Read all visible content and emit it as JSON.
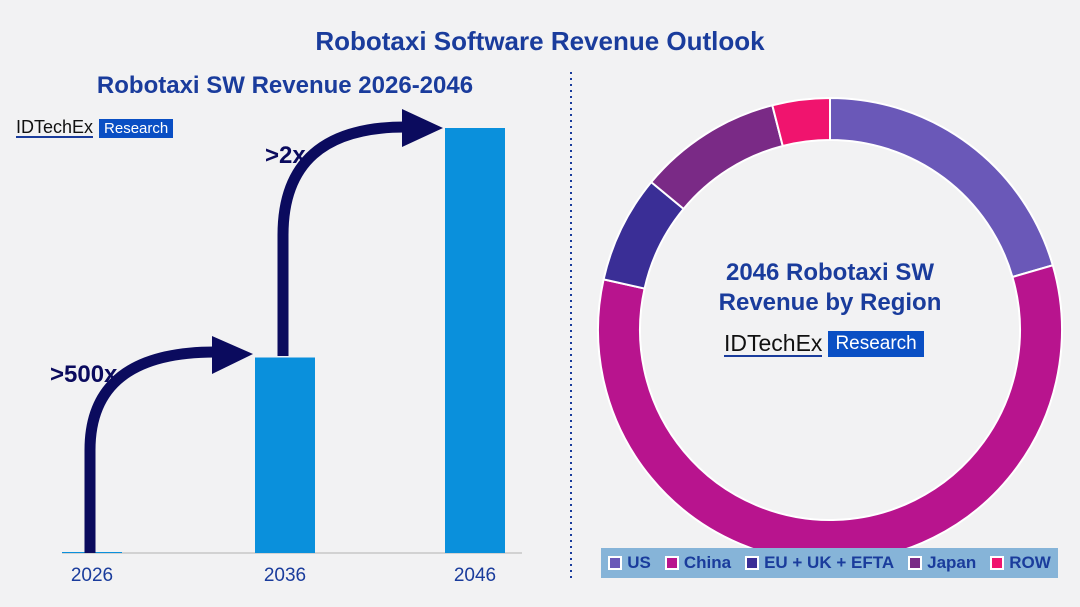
{
  "title": "Robotaxi Software Revenue Outlook",
  "brand": {
    "name": "IDTechEx",
    "tag": "Research"
  },
  "colors": {
    "title": "#1a3c9c",
    "bar": "#0a90dc",
    "arrow": "#0b0b5e"
  },
  "chart_data": [
    {
      "type": "bar",
      "title": "Robotaxi SW Revenue 2026-2046",
      "categories": [
        "2026",
        "2036",
        "2046"
      ],
      "values": [
        0.1,
        46,
        100
      ],
      "value_note": "relative scale, no y-axis printed",
      "annotations": [
        {
          "text": ">500x",
          "from": "2026",
          "to": "2036"
        },
        {
          "text": ">2x",
          "from": "2036",
          "to": "2046"
        }
      ],
      "grid": false
    },
    {
      "type": "pie",
      "style": "donut",
      "title_lines": [
        "2046 Robotaxi SW",
        "Revenue by Region"
      ],
      "labels": [
        "US",
        "China",
        "EU + UK + EFTA",
        "Japan",
        "ROW"
      ],
      "values": [
        20.5,
        58,
        7.5,
        10,
        4
      ],
      "colors": [
        "#6a58b8",
        "#b8148e",
        "#3a2e96",
        "#7a2a86",
        "#f0146e"
      ],
      "legend": "bottom"
    }
  ]
}
